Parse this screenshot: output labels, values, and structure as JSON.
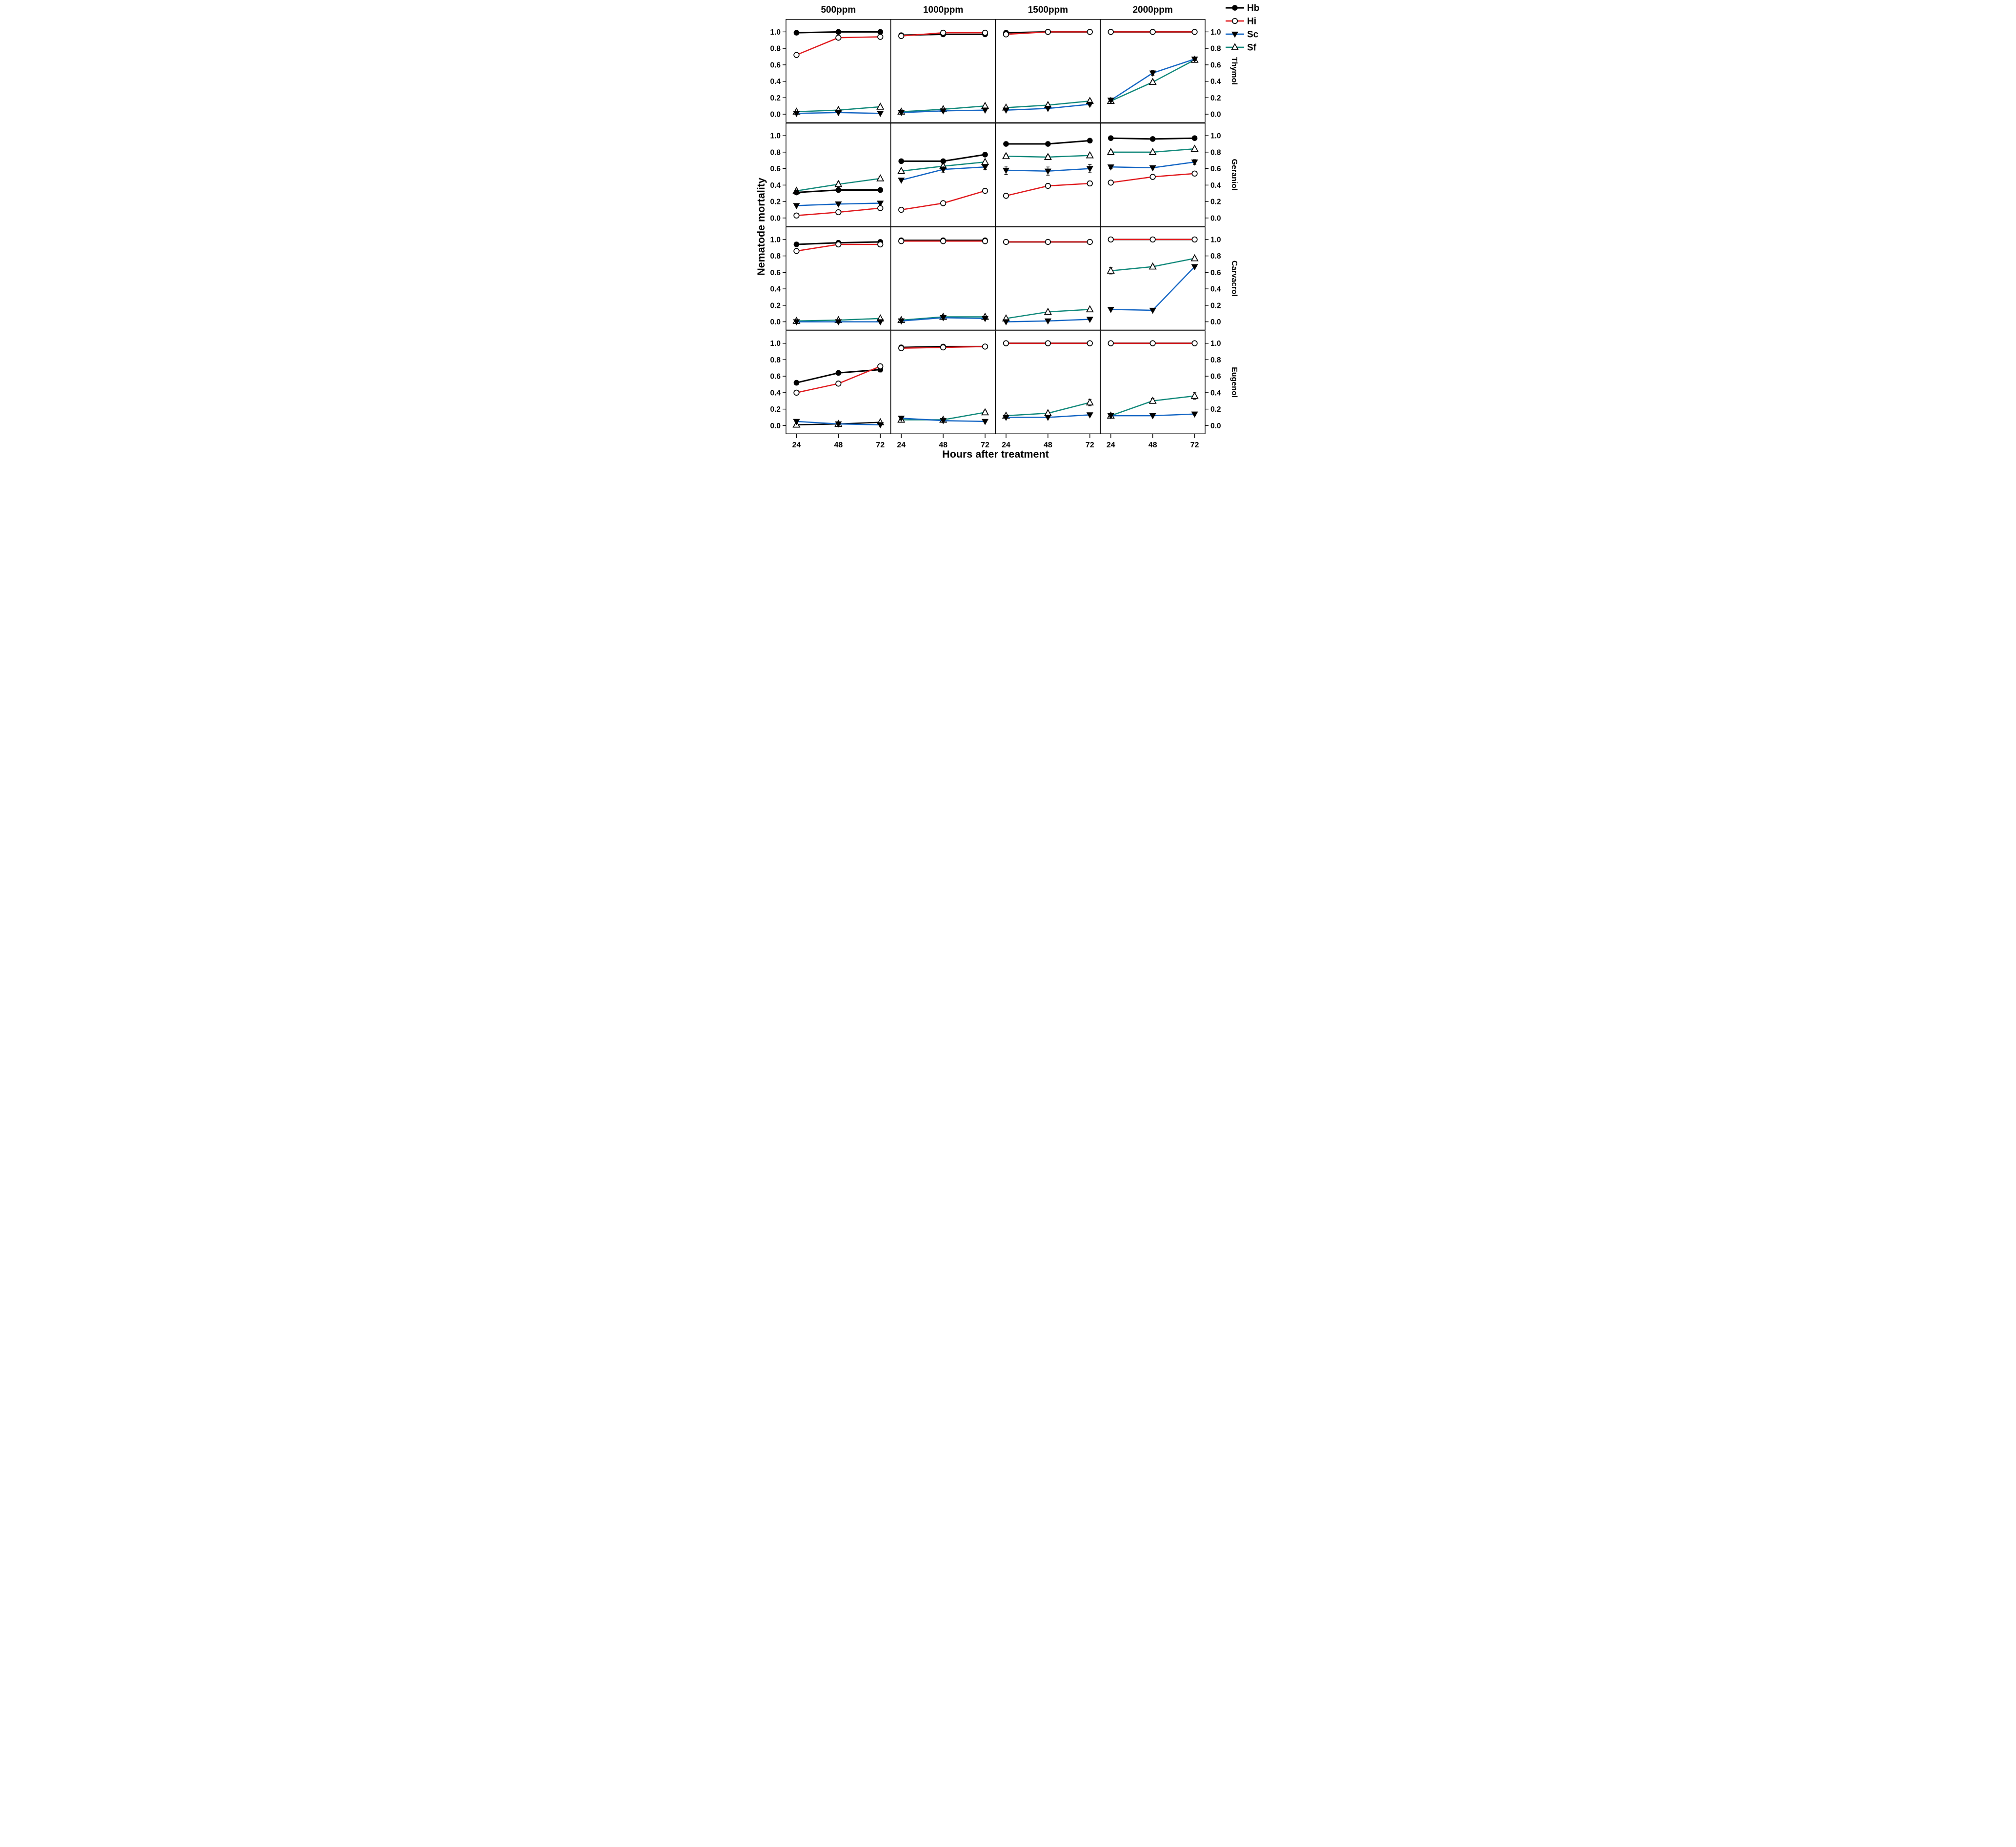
{
  "page": {
    "background": "#ffffff"
  },
  "chart_data": {
    "type": "line",
    "title": "",
    "x": [
      24,
      48,
      72
    ],
    "x_tick_labels": [
      "24",
      "48",
      "72"
    ],
    "xlabel": "Hours after treatment",
    "ylabel": "Nematode mortality",
    "yticks": [
      0.0,
      0.2,
      0.4,
      0.6,
      0.8,
      1.0
    ],
    "ylim": [
      -0.1,
      1.15
    ],
    "grid": "off",
    "column_titles": [
      "500ppm",
      "1000ppm",
      "1500ppm",
      "2000ppm"
    ],
    "row_titles": [
      "Thymol",
      "Geraniol",
      "Carvacrol",
      "Eugenol"
    ],
    "legend": {
      "position": "top-right",
      "entries": [
        {
          "label": "Hb",
          "color": "#000000",
          "marker": "circle-filled"
        },
        {
          "label": "Hi",
          "color": "#e01b1f",
          "marker": "circle-open"
        },
        {
          "label": "Sc",
          "color": "#1566c4",
          "marker": "triangle-down-filled"
        },
        {
          "label": "Sf",
          "color": "#12897b",
          "marker": "triangle-up-open"
        }
      ]
    },
    "series_colors": {
      "Hb": "#000000",
      "Hi": "#e01b1f",
      "Sc": "#1566c4",
      "Sf": "#12897b"
    },
    "series_markers": {
      "Hb": "circle-filled",
      "Hi": "circle-open",
      "Sc": "triangle-down-filled",
      "Sf": "triangle-up-open"
    },
    "draw_order": [
      "Sf",
      "Sc",
      "Hb",
      "Hi"
    ],
    "panels": [
      {
        "row": "Thymol",
        "col": "500ppm",
        "series": [
          {
            "name": "Hb",
            "values": [
              0.99,
              1.0,
              1.0
            ]
          },
          {
            "name": "Hi",
            "values": [
              0.72,
              0.93,
              0.94
            ]
          },
          {
            "name": "Sc",
            "values": [
              0.01,
              0.02,
              0.01
            ]
          },
          {
            "name": "Sf",
            "values": [
              0.03,
              0.05,
              0.09
            ]
          }
        ]
      },
      {
        "row": "Thymol",
        "col": "1000ppm",
        "series": [
          {
            "name": "Hb",
            "values": [
              0.96,
              0.97,
              0.97
            ]
          },
          {
            "name": "Hi",
            "values": [
              0.95,
              0.99,
              0.99
            ]
          },
          {
            "name": "Sc",
            "values": [
              0.02,
              0.04,
              0.05
            ]
          },
          {
            "name": "Sf",
            "values": [
              0.03,
              0.06,
              0.1
            ]
          }
        ]
      },
      {
        "row": "Thymol",
        "col": "1500ppm",
        "series": [
          {
            "name": "Hb",
            "values": [
              0.99,
              1.0,
              1.0
            ]
          },
          {
            "name": "Hi",
            "values": [
              0.97,
              1.0,
              1.0
            ]
          },
          {
            "name": "Sc",
            "values": [
              0.05,
              0.07,
              0.12
            ],
            "err": [
              0,
              0,
              0.02
            ]
          },
          {
            "name": "Sf",
            "values": [
              0.08,
              0.11,
              0.16
            ],
            "err": [
              0,
              0,
              0.02
            ]
          }
        ]
      },
      {
        "row": "Thymol",
        "col": "2000ppm",
        "series": [
          {
            "name": "Hb",
            "values": [
              1.0,
              1.0,
              1.0
            ]
          },
          {
            "name": "Hi",
            "values": [
              1.0,
              1.0,
              1.0
            ]
          },
          {
            "name": "Sc",
            "values": [
              0.17,
              0.5,
              0.67
            ],
            "err": [
              0.02,
              0.03,
              0.02
            ]
          },
          {
            "name": "Sf",
            "values": [
              0.16,
              0.39,
              0.66
            ],
            "err": [
              0.02,
              0.02,
              0.02
            ]
          }
        ]
      },
      {
        "row": "Geraniol",
        "col": "500ppm",
        "series": [
          {
            "name": "Hb",
            "values": [
              0.31,
              0.34,
              0.34
            ]
          },
          {
            "name": "Hi",
            "values": [
              0.03,
              0.07,
              0.12
            ]
          },
          {
            "name": "Sc",
            "values": [
              0.15,
              0.17,
              0.18
            ]
          },
          {
            "name": "Sf",
            "values": [
              0.33,
              0.41,
              0.48
            ],
            "err": [
              0.02,
              0.03,
              0.02
            ]
          }
        ]
      },
      {
        "row": "Geraniol",
        "col": "1000ppm",
        "series": [
          {
            "name": "Hb",
            "values": [
              0.69,
              0.69,
              0.77
            ]
          },
          {
            "name": "Hi",
            "values": [
              0.1,
              0.18,
              0.33
            ],
            "err": [
              0,
              0.02,
              0
            ]
          },
          {
            "name": "Sc",
            "values": [
              0.46,
              0.59,
              0.62
            ],
            "err": [
              0,
              0.04,
              0.03
            ]
          },
          {
            "name": "Sf",
            "values": [
              0.57,
              0.63,
              0.68
            ],
            "err": [
              0,
              0.02,
              0
            ]
          }
        ]
      },
      {
        "row": "Geraniol",
        "col": "1500ppm",
        "series": [
          {
            "name": "Hb",
            "values": [
              0.9,
              0.9,
              0.94
            ]
          },
          {
            "name": "Hi",
            "values": [
              0.27,
              0.39,
              0.42
            ],
            "err": [
              0,
              0.02,
              0.03
            ]
          },
          {
            "name": "Sc",
            "values": [
              0.58,
              0.57,
              0.6
            ],
            "err": [
              0.05,
              0.05,
              0.05
            ]
          },
          {
            "name": "Sf",
            "values": [
              0.75,
              0.74,
              0.76
            ],
            "err": [
              0.02,
              0.02,
              0.02
            ]
          }
        ]
      },
      {
        "row": "Geraniol",
        "col": "2000ppm",
        "series": [
          {
            "name": "Hb",
            "values": [
              0.97,
              0.96,
              0.97
            ]
          },
          {
            "name": "Hi",
            "values": [
              0.43,
              0.5,
              0.54
            ],
            "err": [
              0.02,
              0.03,
              0.02
            ]
          },
          {
            "name": "Sc",
            "values": [
              0.62,
              0.61,
              0.68
            ],
            "err": [
              0.02,
              0,
              0.03
            ]
          },
          {
            "name": "Sf",
            "values": [
              0.8,
              0.8,
              0.84
            ],
            "err": [
              0.02,
              0,
              0
            ]
          }
        ]
      },
      {
        "row": "Carvacrol",
        "col": "500ppm",
        "series": [
          {
            "name": "Hb",
            "values": [
              0.94,
              0.96,
              0.97
            ]
          },
          {
            "name": "Hi",
            "values": [
              0.86,
              0.94,
              0.94
            ]
          },
          {
            "name": "Sc",
            "values": [
              0.0,
              0.0,
              0.0
            ]
          },
          {
            "name": "Sf",
            "values": [
              0.01,
              0.02,
              0.04
            ]
          }
        ]
      },
      {
        "row": "Carvacrol",
        "col": "1000ppm",
        "series": [
          {
            "name": "Hb",
            "values": [
              0.99,
              0.99,
              0.99
            ]
          },
          {
            "name": "Hi",
            "values": [
              0.98,
              0.98,
              0.98
            ]
          },
          {
            "name": "Sc",
            "values": [
              0.01,
              0.05,
              0.04
            ]
          },
          {
            "name": "Sf",
            "values": [
              0.02,
              0.06,
              0.06
            ]
          }
        ]
      },
      {
        "row": "Carvacrol",
        "col": "1500ppm",
        "series": [
          {
            "name": "Hb",
            "values": [
              0.97,
              0.97,
              0.97
            ]
          },
          {
            "name": "Hi",
            "values": [
              0.97,
              0.97,
              0.97
            ]
          },
          {
            "name": "Sc",
            "values": [
              0.0,
              0.01,
              0.03
            ]
          },
          {
            "name": "Sf",
            "values": [
              0.04,
              0.12,
              0.15
            ]
          }
        ]
      },
      {
        "row": "Carvacrol",
        "col": "2000ppm",
        "series": [
          {
            "name": "Hb",
            "values": [
              1.0,
              1.0,
              1.0
            ]
          },
          {
            "name": "Hi",
            "values": [
              1.0,
              1.0,
              1.0
            ]
          },
          {
            "name": "Sc",
            "values": [
              0.15,
              0.14,
              0.67
            ]
          },
          {
            "name": "Sf",
            "values": [
              0.62,
              0.67,
              0.77
            ],
            "err": [
              0.04,
              0.02,
              0.02
            ]
          }
        ]
      },
      {
        "row": "Eugenol",
        "col": "500ppm",
        "series": [
          {
            "name": "Hb",
            "values": [
              0.52,
              0.64,
              0.68
            ],
            "err": [
              0,
              0.02,
              0.03
            ]
          },
          {
            "name": "Hi",
            "values": [
              0.4,
              0.51,
              0.72
            ],
            "err": [
              0.02,
              0.02,
              0.02
            ]
          },
          {
            "name": "Sc",
            "values": [
              0.05,
              0.02,
              0.01
            ]
          },
          {
            "name": "Sf",
            "values": [
              0.01,
              0.02,
              0.04
            ],
            "color": "#000000"
          }
        ]
      },
      {
        "row": "Eugenol",
        "col": "1000ppm",
        "series": [
          {
            "name": "Hb",
            "values": [
              0.95,
              0.96,
              0.96
            ]
          },
          {
            "name": "Hi",
            "values": [
              0.94,
              0.95,
              0.96
            ]
          },
          {
            "name": "Sc",
            "values": [
              0.09,
              0.06,
              0.05
            ]
          },
          {
            "name": "Sf",
            "values": [
              0.07,
              0.07,
              0.16
            ],
            "err": [
              0,
              0,
              0.02
            ]
          }
        ]
      },
      {
        "row": "Eugenol",
        "col": "1500ppm",
        "series": [
          {
            "name": "Hb",
            "values": [
              1.0,
              1.0,
              1.0
            ]
          },
          {
            "name": "Hi",
            "values": [
              1.0,
              1.0,
              1.0
            ]
          },
          {
            "name": "Sc",
            "values": [
              0.1,
              0.1,
              0.13
            ]
          },
          {
            "name": "Sf",
            "values": [
              0.12,
              0.15,
              0.28
            ],
            "err": [
              0,
              0,
              0.04
            ]
          }
        ]
      },
      {
        "row": "Eugenol",
        "col": "2000ppm",
        "series": [
          {
            "name": "Hb",
            "values": [
              1.0,
              1.0,
              1.0
            ]
          },
          {
            "name": "Hi",
            "values": [
              1.0,
              1.0,
              1.0
            ]
          },
          {
            "name": "Sc",
            "values": [
              0.12,
              0.12,
              0.14
            ]
          },
          {
            "name": "Sf",
            "values": [
              0.12,
              0.3,
              0.36
            ],
            "err": [
              0,
              0.03,
              0.04
            ]
          }
        ]
      }
    ]
  }
}
